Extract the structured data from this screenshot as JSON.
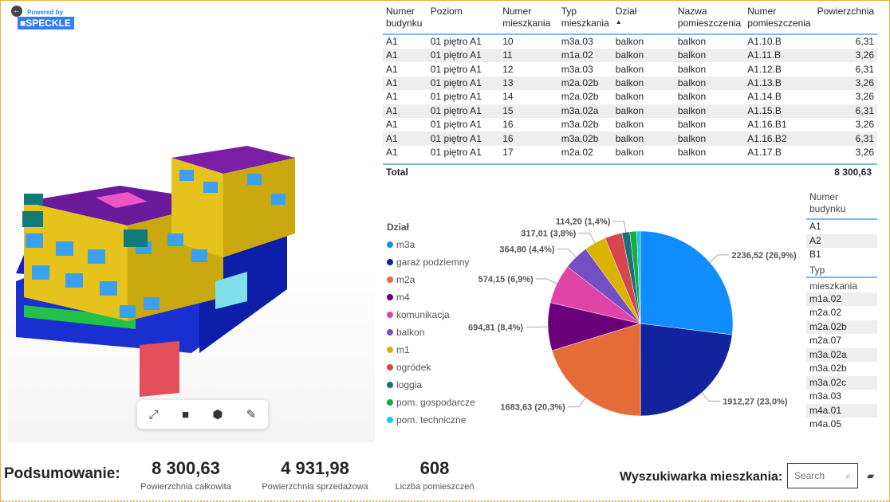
{
  "viewer": {
    "powered_by": "Powered by",
    "brand": "SPECKLE",
    "back_icon": "arrow-left-circle-icon",
    "tools": [
      "expand-icon",
      "camera-icon",
      "cube-icon",
      "brush-icon"
    ]
  },
  "table": {
    "headers": [
      "Numer budynku",
      "Poziom",
      "Numer mieszkania",
      "Typ mieszkania",
      "Dział",
      "Nazwa pomieszczenia",
      "Numer pomieszczenia",
      "Powierzchnia"
    ],
    "sorted_column": "Dział",
    "rows": [
      [
        "A1",
        "01 piętro A1",
        "10",
        "m3a.03",
        "balkon",
        "balkon",
        "A1.10.B",
        "6,31"
      ],
      [
        "A1",
        "01 piętro A1",
        "11",
        "m1a.02",
        "balkon",
        "balkon",
        "A1.11.B",
        "3,26"
      ],
      [
        "A1",
        "01 piętro A1",
        "12",
        "m3a.03",
        "balkon",
        "balkon",
        "A1.12.B",
        "6,31"
      ],
      [
        "A1",
        "01 piętro A1",
        "13",
        "m2a.02b",
        "balkon",
        "balkon",
        "A1.13.B",
        "3,26"
      ],
      [
        "A1",
        "01 piętro A1",
        "14",
        "m2a.02b",
        "balkon",
        "balkon",
        "A1.14.B",
        "3,26"
      ],
      [
        "A1",
        "01 piętro A1",
        "15",
        "m3a.02a",
        "balkon",
        "balkon",
        "A1.15.B",
        "6,31"
      ],
      [
        "A1",
        "01 piętro A1",
        "16",
        "m3a.02b",
        "balkon",
        "balkon",
        "A1.16.B1",
        "3,26"
      ],
      [
        "A1",
        "01 piętro A1",
        "16",
        "m3a.02b",
        "balkon",
        "balkon",
        "A1.16.B2",
        "6,31"
      ],
      [
        "A1",
        "01 piętro A1",
        "17",
        "m2a.02",
        "balkon",
        "balkon",
        "A1.17.B",
        "3,26"
      ]
    ],
    "total_label": "Total",
    "total_value": "8 300,63"
  },
  "chart_data": {
    "type": "pie",
    "legend_title": "Dział",
    "legend_position": "left",
    "categories": [
      "m3a",
      "garaż podziemny",
      "m2a",
      "m4",
      "komunikacja",
      "balkon",
      "m1",
      "ogródek",
      "loggia",
      "pom. gospodarcze",
      "pom. techniczne"
    ],
    "values": [
      2236.52,
      1912.27,
      1683.63,
      694.81,
      574.15,
      364.8,
      317.01,
      250,
      114.2,
      100,
      53.24
    ],
    "colors": [
      "#118dff",
      "#12239e",
      "#e66c37",
      "#6b007b",
      "#e044a7",
      "#744ec2",
      "#d9b300",
      "#d64550",
      "#197278",
      "#1aab40",
      "#15c6f4"
    ],
    "data_labels": [
      "2236,52 (26,9%)",
      "1912,27 (23,0%)",
      "1683,63 (20,3%)",
      "694,81 (8,4%)",
      "574,15 (6,9%)",
      "364,80 (4,4%)",
      "317,01 (3,8%)",
      "",
      "114,20 (1,4%)",
      "",
      ""
    ]
  },
  "slicers": {
    "building": {
      "title": "Numer budynku",
      "items": [
        "A1",
        "A2",
        "B1"
      ]
    },
    "type": {
      "title": "Typ mieszkania",
      "items": [
        "m1a.02",
        "m2a.02",
        "m2a.02b",
        "m2a.07",
        "m3a.02a",
        "m3a.02b",
        "m3a.02c",
        "m3a.03",
        "m4a.01",
        "m4a.05"
      ]
    }
  },
  "summary": {
    "title": "Podsumowanie:",
    "kpis": [
      {
        "value": "8 300,63",
        "label": "Powierzchnia całkowita"
      },
      {
        "value": "4 931,98",
        "label": "Powierzchnia sprzedażowa"
      },
      {
        "value": "608",
        "label": "Liczba pomieszczeń"
      }
    ]
  },
  "search": {
    "title": "Wyszukiwarka mieszkania:",
    "placeholder": "Search"
  }
}
